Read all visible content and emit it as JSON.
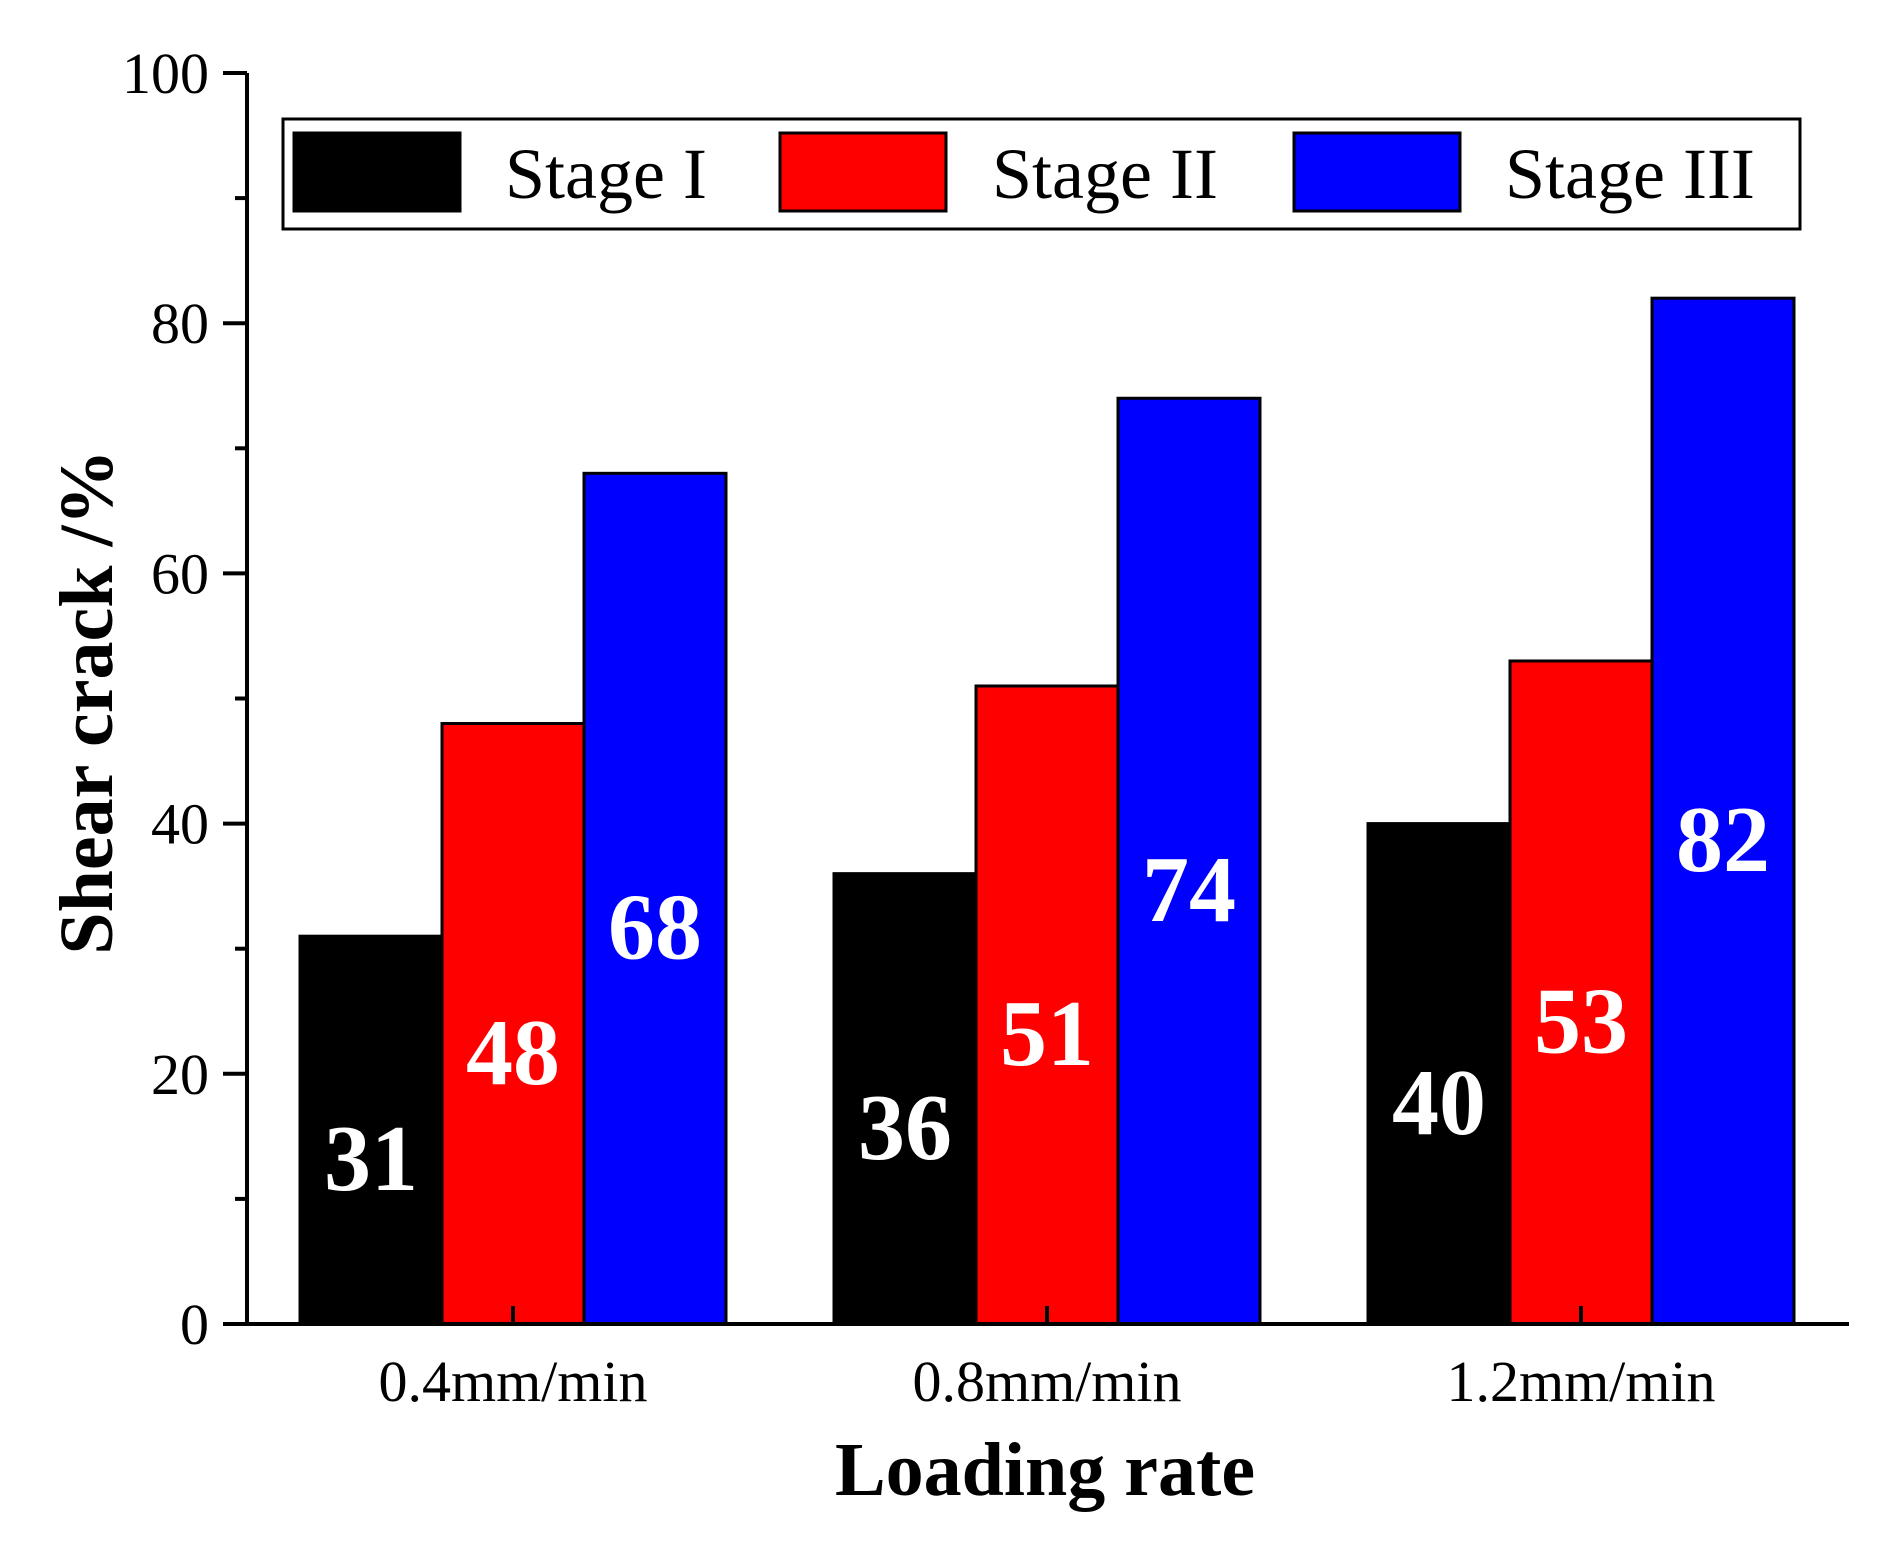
{
  "chart_data": {
    "type": "bar",
    "title": "",
    "xlabel": "Loading rate",
    "ylabel": "Shear crack /%",
    "ylim": [
      0,
      100
    ],
    "yticks": [
      0,
      20,
      40,
      60,
      80,
      100
    ],
    "categories": [
      "0.4mm/min",
      "0.8mm/min",
      "1.2mm/min"
    ],
    "series": [
      {
        "name": "Stage I",
        "color": "#000000",
        "values": [
          31,
          36,
          40
        ]
      },
      {
        "name": "Stage II",
        "color": "#ff0000",
        "values": [
          48,
          51,
          53
        ]
      },
      {
        "name": "Stage III",
        "color": "#0000ff",
        "values": [
          68,
          74,
          82
        ]
      }
    ],
    "data_labels": true,
    "legend": "top"
  }
}
